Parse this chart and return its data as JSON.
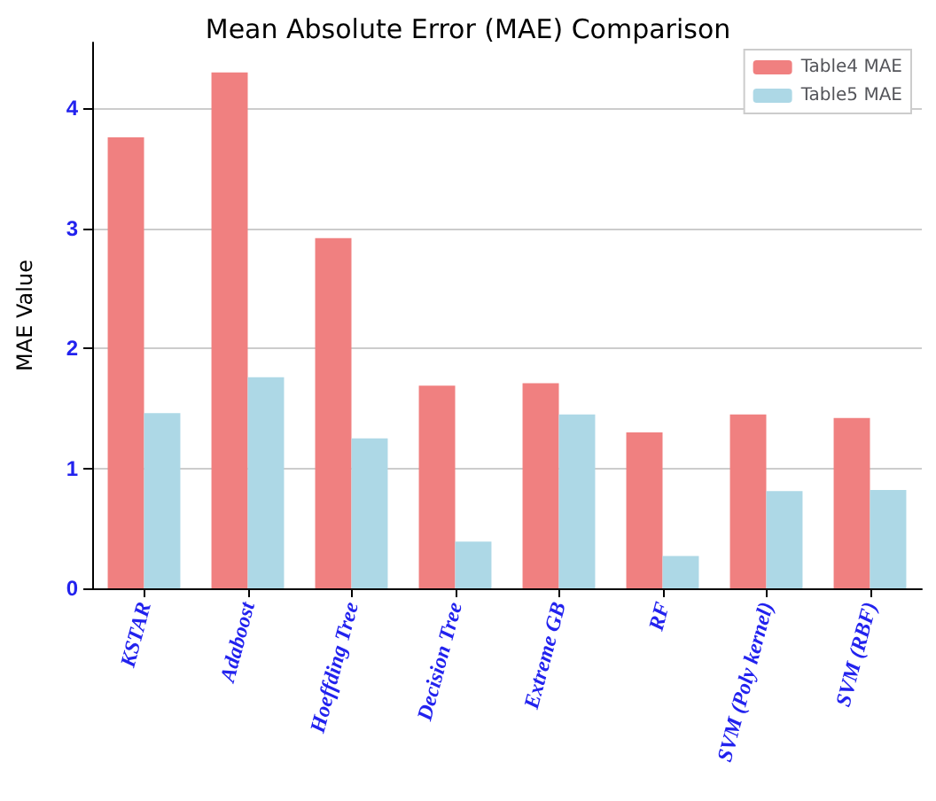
{
  "chart_data": {
    "type": "bar",
    "title": "Mean Absolute Error (MAE) Comparison",
    "ylabel": "MAE Value",
    "categories": [
      "KSTAR",
      "Adaboost",
      "Hoeffding Tree",
      "Decision Tree",
      "Extreme GB",
      "RF",
      "SVM (Poly kernel)",
      "SVM (RBF)"
    ],
    "series": [
      {
        "name": "Table4 MAE",
        "color": "#f08080",
        "values": [
          3.76,
          4.3,
          2.92,
          1.69,
          1.71,
          1.3,
          1.45,
          1.42
        ]
      },
      {
        "name": "Table5 MAE",
        "color": "#add8e6",
        "values": [
          1.46,
          1.76,
          1.25,
          0.39,
          1.45,
          0.27,
          0.81,
          0.82
        ]
      }
    ],
    "ylim": [
      0,
      4.55
    ],
    "yticks": [
      0,
      1,
      2,
      3,
      4
    ],
    "grid": "y",
    "legend": "top right"
  }
}
